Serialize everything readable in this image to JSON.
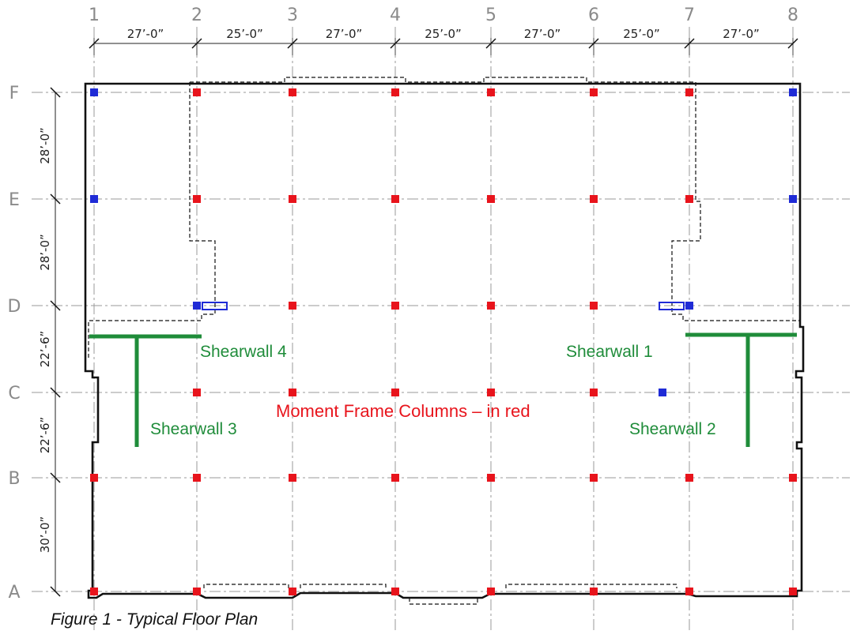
{
  "colors": {
    "moment_column": "#e8141c",
    "other_column": "#1f2bd6",
    "shearwall": "#1f8c3a",
    "grid": "#9a9a9a",
    "outline": "#111111",
    "label_red": "#e8141c"
  },
  "grid": {
    "columns": [
      "1",
      "2",
      "3",
      "4",
      "5",
      "6",
      "7",
      "8"
    ],
    "rows": [
      "F",
      "E",
      "D",
      "C",
      "B",
      "A"
    ]
  },
  "dimensions": {
    "bays_x": [
      "27’-0”",
      "25’-0”",
      "27’-0”",
      "25’-0”",
      "27’-0”",
      "25’-0”",
      "27’-0”"
    ],
    "bays_y": [
      "28’-0”",
      "28’-0”",
      "22’-6”",
      "22’-6”",
      "30’-0”"
    ]
  },
  "shearwalls": [
    "Shearwall 1",
    "Shearwall 2",
    "Shearwall 3",
    "Shearwall 4"
  ],
  "moment_frame_label": "Moment Frame Columns – in red",
  "caption": "Figure 1 - Typical Floor Plan",
  "columns_blue": [
    [
      "1",
      "F"
    ],
    [
      "8",
      "F"
    ],
    [
      "1",
      "E"
    ],
    [
      "8",
      "E"
    ],
    [
      "2",
      "D"
    ],
    [
      "7",
      "D"
    ]
  ],
  "columns_blue_extra": [
    [
      "6.7",
      "C"
    ]
  ]
}
